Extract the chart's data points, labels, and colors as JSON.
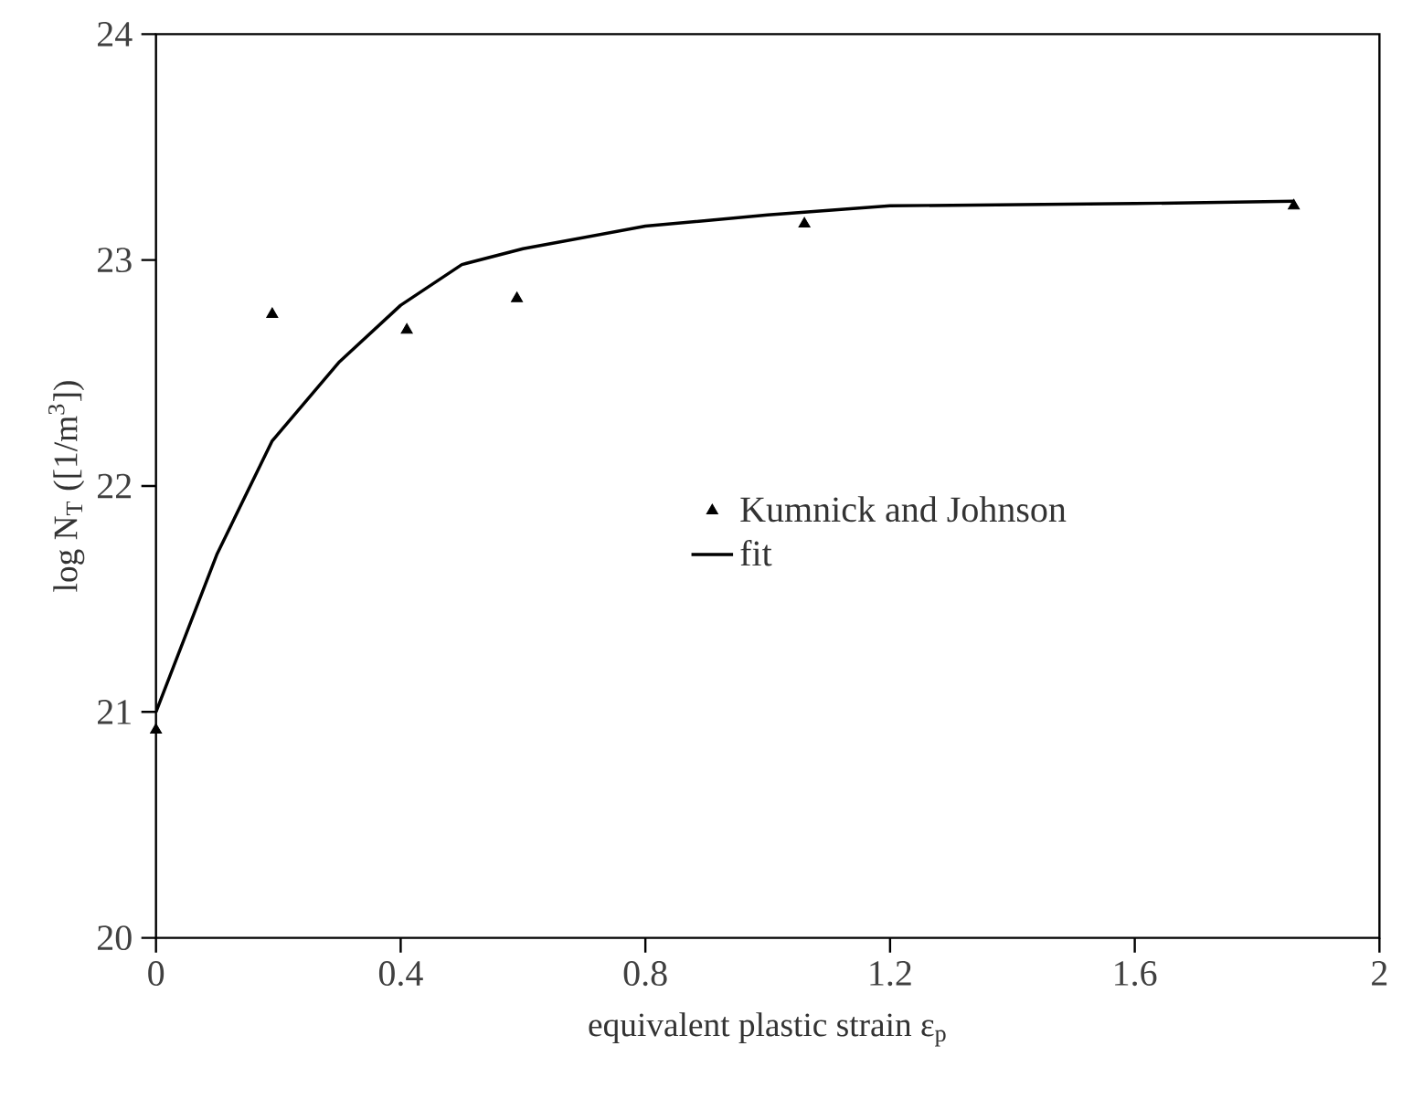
{
  "chart_data": {
    "type": "scatter",
    "xlabel": "equivalent plastic strain ε$_{p}$",
    "ylabel": "log N$_{T}$ ([1/m$^{3}$])",
    "xlim": [
      0,
      2
    ],
    "ylim": [
      20,
      24
    ],
    "xticks": [
      0,
      0.4,
      0.8,
      1.2,
      1.6,
      2
    ],
    "yticks": [
      20,
      21,
      22,
      23,
      24
    ],
    "grid": false,
    "legend": "right",
    "series": [
      {
        "name": "Kumnick and Johnson",
        "marker": "triangle",
        "color": "#000000",
        "x": [
          0,
          0.19,
          0.41,
          0.59,
          1.06,
          1.86
        ],
        "values": [
          20.92,
          22.76,
          22.69,
          22.83,
          23.16,
          23.24
        ]
      },
      {
        "name": "fit",
        "type": "line",
        "marker": "none",
        "line_style": "solid",
        "color": "#000000",
        "x": [
          0,
          0.1,
          0.19,
          0.3,
          0.4,
          0.5,
          0.6,
          0.8,
          1.0,
          1.2,
          1.6,
          1.86
        ],
        "values": [
          21.0,
          21.7,
          22.2,
          22.55,
          22.8,
          22.98,
          23.05,
          23.15,
          23.2,
          23.24,
          23.25,
          23.26
        ]
      }
    ]
  }
}
